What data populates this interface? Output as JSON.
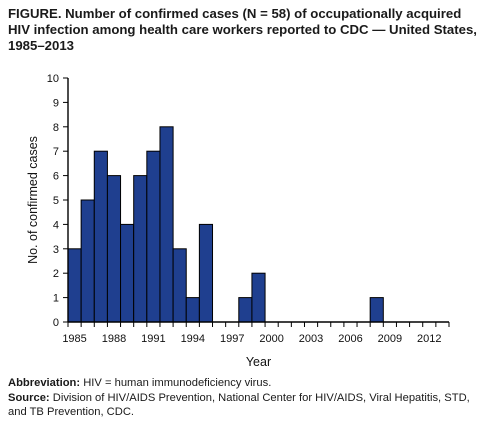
{
  "figure": {
    "title_lead": "FIGURE.",
    "title_rest": "Number of confirmed cases (N = 58) of occupationally acquired HIV infection among health care workers reported to CDC — United States, 1985–2013"
  },
  "footer": {
    "abbrev_label": "Abbreviation:",
    "abbrev_text": "HIV = human immunodeficiency virus.",
    "source_label": "Source:",
    "source_text": "Division of HIV/AIDS Prevention, National Center for HIV/AIDS, Viral Hepatitis, STD, and TB Prevention, CDC."
  },
  "chart_data": {
    "type": "bar",
    "xlabel": "Year",
    "ylabel": "No. of confirmed cases",
    "ylim": [
      0,
      10
    ],
    "yticks": [
      0,
      1,
      2,
      3,
      4,
      5,
      6,
      7,
      8,
      9,
      10
    ],
    "xlim": [
      1985,
      2013
    ],
    "xtick_labels": [
      "1985",
      "1988",
      "1991",
      "1994",
      "1997",
      "2000",
      "2003",
      "2006",
      "2009",
      "2012"
    ],
    "categories": [
      1985,
      1986,
      1987,
      1988,
      1989,
      1990,
      1991,
      1992,
      1993,
      1994,
      1995,
      1996,
      1997,
      1998,
      1999,
      2000,
      2001,
      2002,
      2003,
      2004,
      2005,
      2006,
      2007,
      2008,
      2009,
      2010,
      2011,
      2012,
      2013
    ],
    "values": [
      3,
      5,
      7,
      6,
      4,
      6,
      7,
      8,
      3,
      1,
      4,
      0,
      0,
      1,
      2,
      0,
      0,
      0,
      0,
      0,
      0,
      0,
      0,
      1,
      0,
      0,
      0,
      0,
      0
    ],
    "bar_color": "#1f3f8f",
    "grid": false
  }
}
